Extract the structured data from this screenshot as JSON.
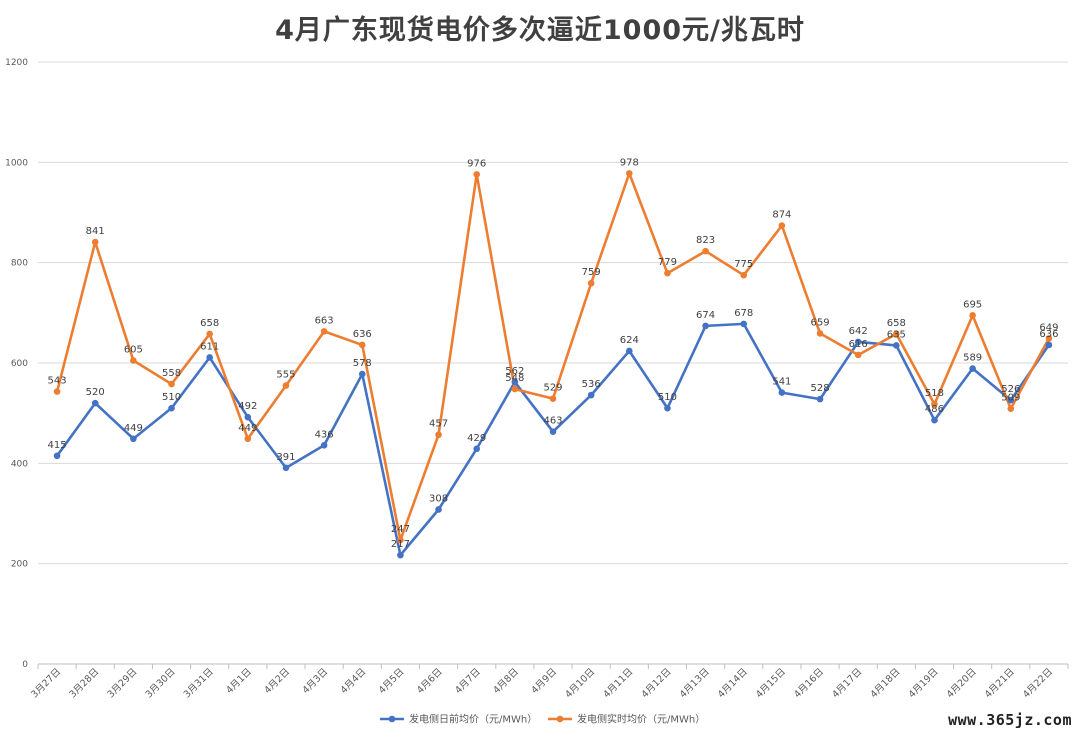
{
  "chart_data": {
    "type": "line",
    "title": "4月广东现货电价多次逼近1000元/兆瓦时",
    "xlabel": "",
    "ylabel": "",
    "ylim": [
      0,
      1200
    ],
    "yticks": [
      "0",
      "200",
      "400",
      "600",
      "800",
      "1000",
      "1200"
    ],
    "grid": true,
    "legend_position": "bottom",
    "categories": [
      "3月27日",
      "3月28日",
      "3月29日",
      "3月30日",
      "3月31日",
      "4月1日",
      "4月2日",
      "4月3日",
      "4月4日",
      "4月5日",
      "4月6日",
      "4月7日",
      "4月8日",
      "4月9日",
      "4月10日",
      "4月11日",
      "4月12日",
      "4月13日",
      "4月14日",
      "4月15日",
      "4月16日",
      "4月17日",
      "4月18日",
      "4月19日",
      "4月20日",
      "4月21日",
      "4月22日"
    ],
    "series": [
      {
        "name": "发电侧日前均价（元/MWh）",
        "color": "#4472C4",
        "values": [
          415,
          520,
          449,
          510,
          611,
          492,
          391,
          436,
          578,
          217,
          308,
          429,
          562,
          463,
          536,
          624,
          510,
          674,
          678,
          541,
          528,
          642,
          635,
          486,
          589,
          526,
          636
        ]
      },
      {
        "name": "发电侧实时均价（元/MWh）",
        "color": "#ED7D31",
        "values": [
          543,
          841,
          605,
          558,
          658,
          449,
          555,
          663,
          636,
          247,
          457,
          976,
          548,
          529,
          759,
          978,
          779,
          823,
          775,
          874,
          659,
          616,
          658,
          518,
          695,
          509,
          649
        ]
      }
    ]
  },
  "watermark": "www.365jz.com"
}
